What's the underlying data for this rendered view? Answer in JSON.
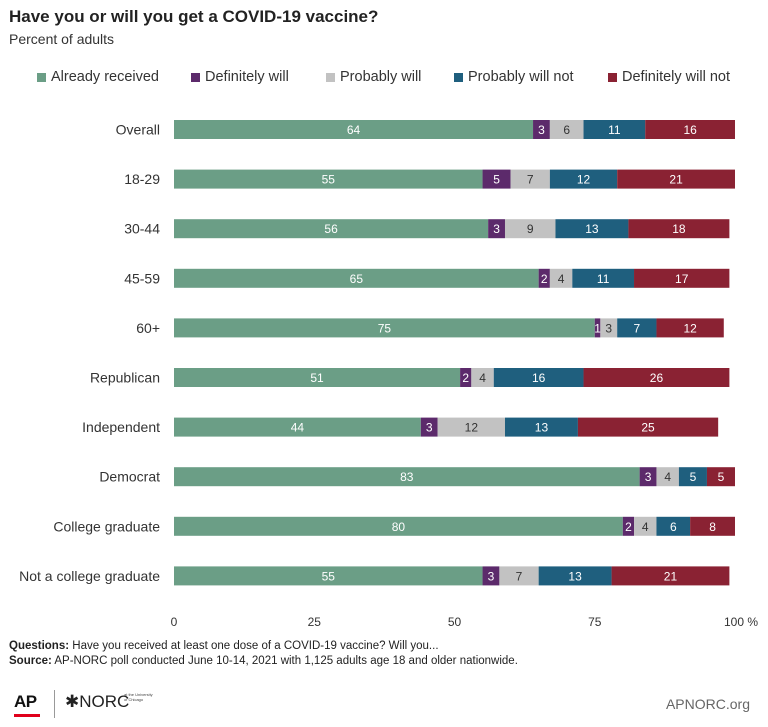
{
  "header": {
    "title": "Have you or will you get a COVID-19 vaccine?",
    "subtitle": "Percent of adults"
  },
  "colors": {
    "Already received": "#6b9e86",
    "Definitely will": "#5c2a6b",
    "Probably will": "#c2c2c2",
    "Probably will not": "#1f5f7e",
    "Definitely will not": "#8a2233"
  },
  "chart_data": {
    "type": "bar",
    "orientation": "horizontal",
    "stacked": true,
    "title": "Have you or will you get a COVID-19 vaccine?",
    "subtitle": "Percent of adults",
    "categories": [
      "Overall",
      "18-29",
      "30-44",
      "45-59",
      "60+",
      "Republican",
      "Independent",
      "Democrat",
      "College graduate",
      "Not a college graduate"
    ],
    "series": [
      {
        "name": "Already received",
        "values": [
          64,
          55,
          56,
          65,
          75,
          51,
          44,
          83,
          80,
          55
        ]
      },
      {
        "name": "Definitely will",
        "values": [
          3,
          5,
          3,
          2,
          1,
          2,
          3,
          3,
          2,
          3
        ]
      },
      {
        "name": "Probably will",
        "values": [
          6,
          7,
          9,
          4,
          3,
          4,
          12,
          4,
          4,
          7
        ]
      },
      {
        "name": "Probably will not",
        "values": [
          11,
          12,
          13,
          11,
          7,
          16,
          13,
          5,
          6,
          13
        ]
      },
      {
        "name": "Definitely will not",
        "values": [
          16,
          21,
          18,
          17,
          12,
          26,
          25,
          5,
          8,
          21
        ]
      }
    ],
    "xlim": [
      0,
      100
    ],
    "x_ticks": [
      "0",
      "25",
      "50",
      "75",
      "100 %"
    ],
    "legend_position": "top",
    "grid": false
  },
  "footer": {
    "questions_label": "Questions:",
    "questions_text": " Have you received at least one dose of a COVID-19 vaccine? Will you...",
    "source_label": "Source:",
    "source_text": " AP-NORC poll conducted June 10-14, 2021 with 1,125 adults age 18 and older nationwide.",
    "logo_ap": "AP",
    "logo_norc": "✱NORC",
    "logo_norc_sub": "at the University of Chicago",
    "site": "APNORC.org"
  }
}
